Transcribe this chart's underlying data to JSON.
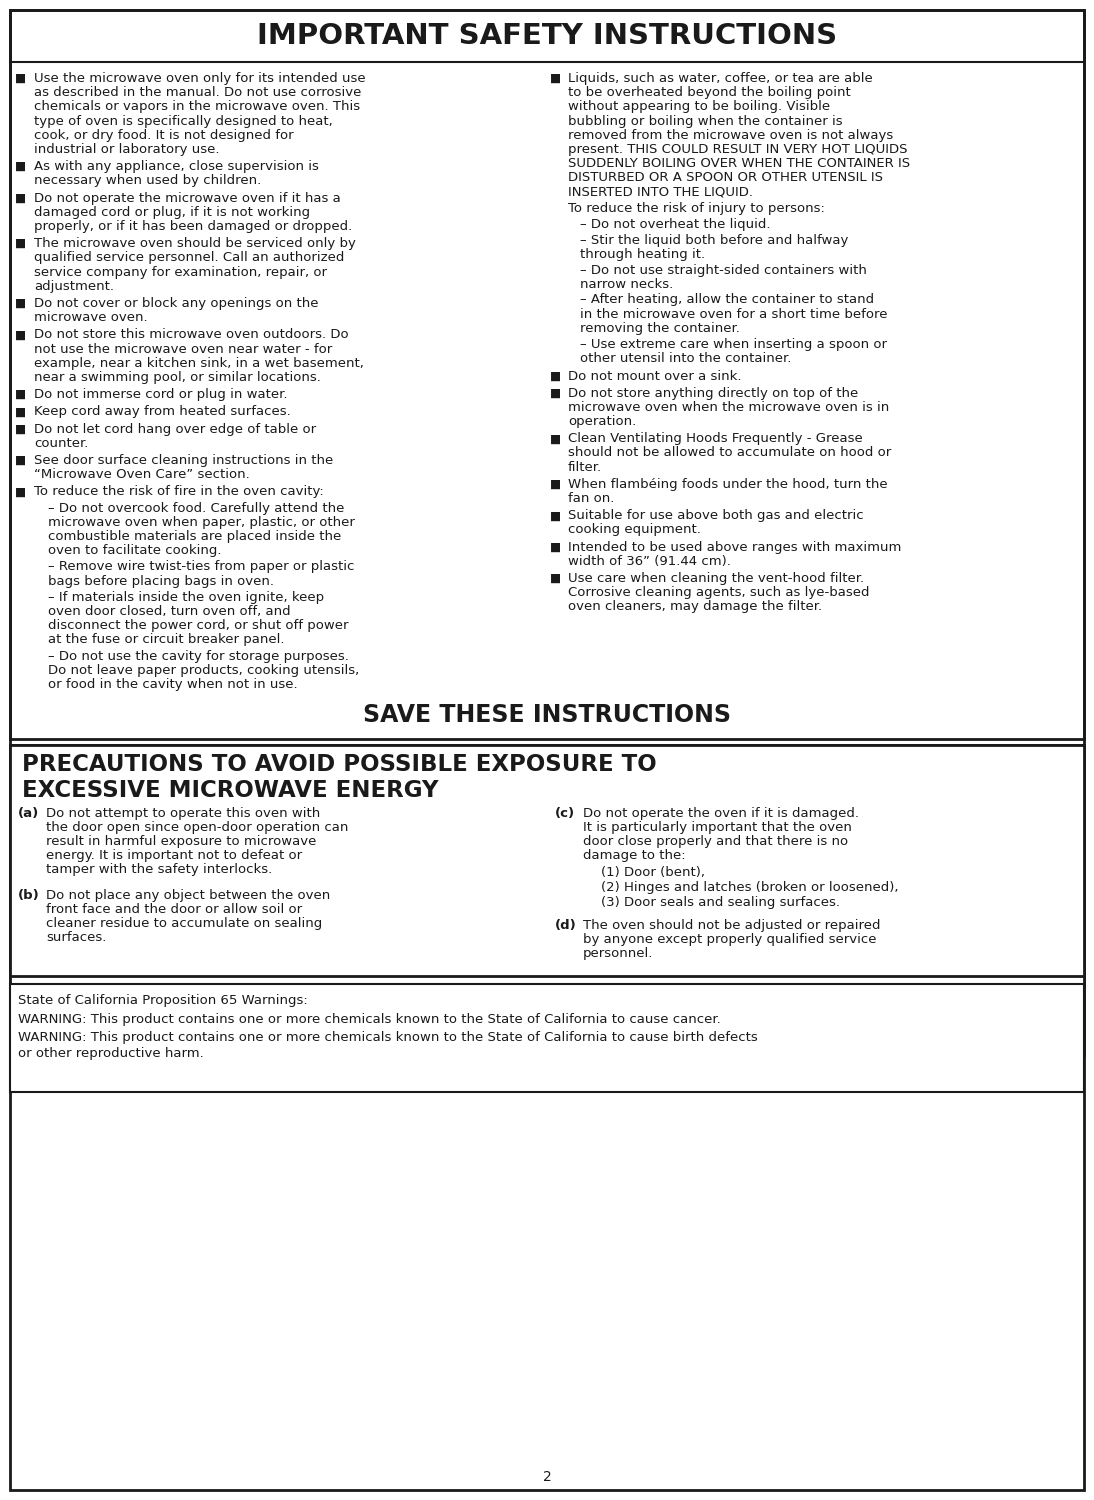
{
  "bg_color": "#ffffff",
  "border_color": "#1a1a1a",
  "title1": "IMPORTANT SAFETY INSTRUCTIONS",
  "title2": "SAVE THESE INSTRUCTIONS",
  "title3_line1": "PRECAUTIONS TO AVOID POSSIBLE EXPOSURE TO",
  "title3_line2": "EXCESSIVE MICROWAVE ENERGY",
  "page_number": "2",
  "left_bullets": [
    "Use the microwave oven only for its intended use as described in the manual. Do not use corrosive chemicals or vapors in the microwave oven. This type of oven is specifically designed to heat, cook, or dry food. It is not designed for industrial or laboratory use.",
    "As with any appliance, close supervision is necessary when used by children.",
    "Do not operate the microwave oven if it has a damaged cord or plug, if it is not working properly, or if it has been damaged or dropped.",
    "The microwave oven should be serviced only by qualified service personnel. Call an authorized service company for examination, repair, or adjustment.",
    "Do not cover or block any openings on the microwave oven.",
    "Do not store this microwave oven outdoors. Do not use the microwave oven near water - for example, near a kitchen sink, in a wet basement, near a swimming pool, or similar locations.",
    "Do not immerse cord or plug in water.",
    "Keep cord away from heated surfaces.",
    "Do not let cord hang over edge of table or counter.",
    "See door surface cleaning instructions in the “Microwave Oven Care” section.",
    "To reduce the risk of fire in the oven cavity:"
  ],
  "left_subbullets": [
    "– Do not overcook food. Carefully attend the microwave oven when paper, plastic, or other combustible materials are placed inside the oven to facilitate cooking.",
    "– Remove wire twist-ties from paper or plastic bags before placing bags in oven.",
    "– If materials inside the oven ignite, keep oven door closed, turn oven off, and disconnect the power cord, or shut off power at the fuse or circuit breaker panel.",
    "– Do not use the cavity for storage purposes. Do not leave paper products, cooking utensils, or food in the cavity when not in use."
  ],
  "right_bullet0": "Liquids, such as water, coffee, or tea are able to be overheated beyond the boiling point without appearing to be boiling. Visible bubbling or boiling when the container is removed from the microwave oven is not always present. THIS COULD RESULT IN VERY HOT LIQUIDS SUDDENLY BOILING OVER WHEN THE CONTAINER IS DISTURBED OR A SPOON OR OTHER UTENSIL IS INSERTED INTO THE LIQUID.",
  "right_sublabel": "To reduce the risk of injury to persons:",
  "right_subbullets": [
    "– Do not overheat the liquid.",
    "– Stir the liquid both before and halfway through heating it.",
    "– Do not use straight-sided containers with narrow necks.",
    "– After heating, allow the container to stand in the microwave oven for a short time before removing the container.",
    "– Use extreme care when inserting a spoon or other utensil into the container."
  ],
  "right_bullets_rest": [
    "Do not mount over a sink.",
    "Do not store anything directly on top of the microwave oven when the microwave oven is in operation.",
    "Clean Ventilating Hoods Frequently - Grease should not be allowed to accumulate on hood or filter.",
    "When flambéing foods under the hood, turn the fan on.",
    "Suitable for use above both gas and electric cooking equipment.",
    "Intended to be used above ranges with maximum width of 36” (91.44 cm).",
    "Use care when cleaning the vent-hood filter. Corrosive cleaning agents, such as lye-based oven cleaners, may damage the filter."
  ],
  "precautions_left": [
    [
      "(a)",
      "Do not attempt to operate this oven with the door open since open-door operation can result in harmful exposure to microwave energy. It is important not to defeat or tamper with the safety interlocks."
    ],
    [
      "(b)",
      "Do not place any object between the oven front face and the door or allow soil or cleaner residue to accumulate on sealing surfaces."
    ]
  ],
  "precautions_right_c": [
    "(c)",
    "Do not operate the oven if it is damaged. It is particularly important that the oven door close properly and that there is no damage to the:"
  ],
  "precautions_c_items": [
    "(1) Door (bent),",
    "(2) Hinges and latches (broken or loosened),",
    "(3) Door seals and sealing surfaces."
  ],
  "precautions_right_d": [
    "(d)",
    "The oven should not be adjusted or repaired by anyone except properly qualified service personnel."
  ],
  "california_text": [
    "State of California Proposition 65 Warnings:",
    "WARNING: This product contains one or more chemicals known to the State of California to cause cancer.",
    "WARNING: This product contains one or more chemicals known to the State of California to cause birth defects or other reproductive harm."
  ],
  "font_size_body": 9.5,
  "font_size_title1": 21,
  "font_size_title2": 17,
  "font_size_title3": 16.5
}
